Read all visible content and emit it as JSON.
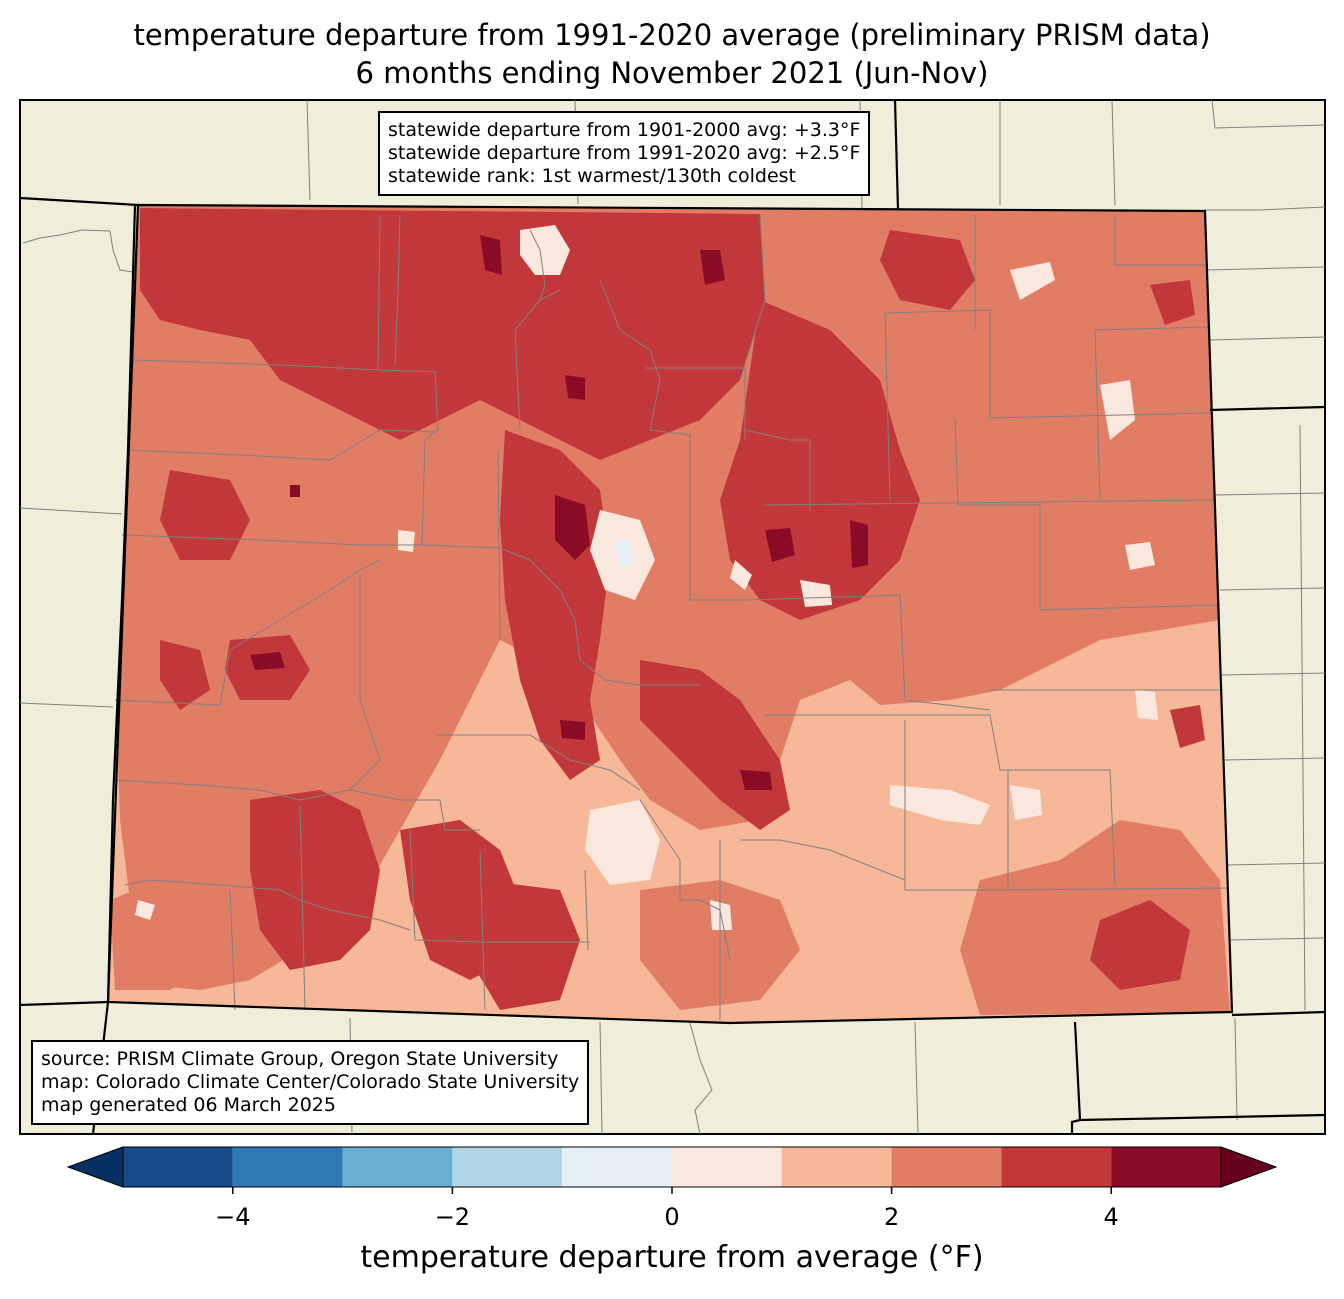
{
  "title": {
    "line1": "temperature departure from 1991-2020 average (preliminary PRISM data)",
    "line2": "6 months ending November 2021 (Jun-Nov)"
  },
  "stats": {
    "line1": "statewide departure from 1901-2000 avg: +3.3°F",
    "line2": "statewide departure from 1991-2020 avg: +2.5°F",
    "line3": "statewide rank: 1st warmest/130th coldest"
  },
  "source": {
    "line1": "source: PRISM Climate Group, Oregon State University",
    "line2": "map: Colorado Climate Center/Colorado State University",
    "line3": "map generated 06 March 2025"
  },
  "colorbar": {
    "label": "temperature departure from average (°F)",
    "ticks": [
      "−4",
      "−2",
      "0",
      "2",
      "4"
    ],
    "tick_values": [
      -4,
      -2,
      0,
      2,
      4
    ],
    "range": [
      -5,
      5
    ],
    "step": 1,
    "extend": "both",
    "colors": [
      "#053061",
      "#154b87",
      "#2f7ab6",
      "#6aaed3",
      "#b1d5e7",
      "#e4eef3",
      "#fae7dd",
      "#f7b799",
      "#e27d65",
      "#c2373a",
      "#8a0b25",
      "#67001f"
    ]
  },
  "map": {
    "land_color": "#efeedb",
    "state_outline_color": "#000000",
    "county_line_color": "#808080"
  }
}
